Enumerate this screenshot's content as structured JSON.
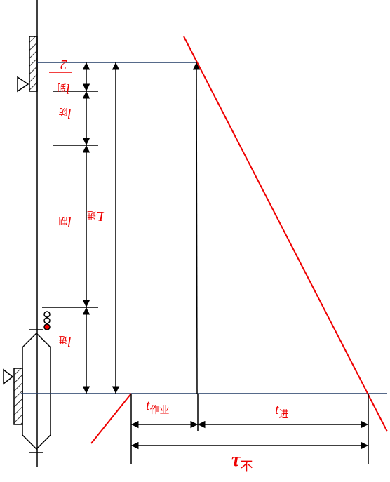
{
  "labels": {
    "arrive_half": {
      "main": "l",
      "sub": "到",
      "denominator": "2"
    },
    "guard": {
      "main": "l",
      "sub": "防"
    },
    "brake": {
      "main": "l",
      "sub": "制"
    },
    "enter": {
      "main": "l",
      "sub": "进"
    },
    "total_enter": {
      "main": "L",
      "sub": "进"
    },
    "t_work": {
      "main": "t",
      "sub": "作业"
    },
    "t_enter": {
      "main": "t",
      "sub": "进"
    },
    "tau": {
      "main": "τ",
      "sub": "不"
    }
  }
}
